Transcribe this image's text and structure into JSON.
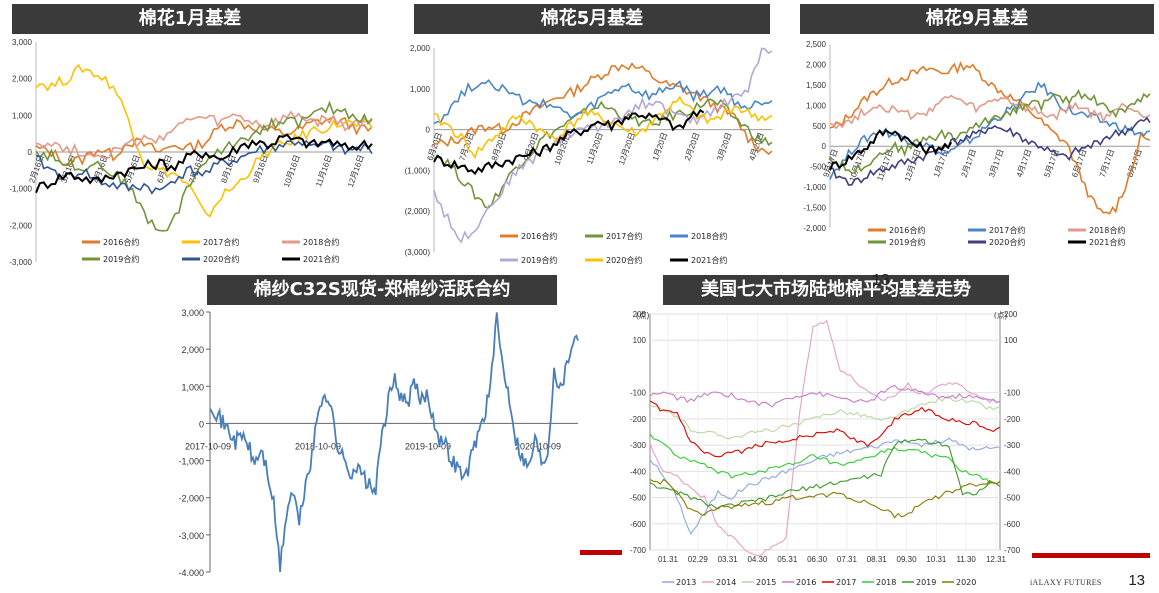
{
  "page": {
    "page_number": "13",
    "brand_text": "iALAXY FUTURES",
    "overlay_number": "13"
  },
  "chart_data": [
    {
      "id": "jan",
      "type": "line",
      "title": "棉花1月基差",
      "ylim": [
        -3000,
        3000
      ],
      "yticks": [
        "3,000",
        "2,000",
        "1,000",
        "0",
        "(1,000)",
        "-2,000",
        "-3,000"
      ],
      "yticks_display": [
        "3,000",
        "2,000",
        "1,000",
        "0",
        "-1,000",
        "-2,000",
        "-3,000"
      ],
      "xticks": [
        "2月16日",
        "3月16日",
        "4月16日",
        "5月16日",
        "6月16日",
        "7月16日",
        "8月16日",
        "9月16日",
        "10月16日",
        "11月16日",
        "12月16日"
      ],
      "series": [
        {
          "name": "2016合约",
          "color": "#e07b29",
          "values": [
            100,
            0,
            -300,
            -200,
            100,
            -100,
            300,
            200,
            0,
            200,
            100,
            300,
            700,
            800,
            700,
            600,
            500,
            600,
            800,
            900,
            800,
            600
          ]
        },
        {
          "name": "2017合约",
          "color": "#ffc000",
          "values": [
            1900,
            1800,
            2000,
            2300,
            2100,
            1800,
            900,
            -300,
            -500,
            -600,
            -1000,
            -1800,
            -1200,
            -900,
            -400,
            0,
            200,
            400,
            600,
            700,
            800,
            700
          ]
        },
        {
          "name": "2018合约",
          "color": "#e39a8a",
          "values": [
            300,
            200,
            100,
            0,
            -100,
            0,
            200,
            300,
            400,
            600,
            900,
            900,
            800,
            1000,
            800,
            700,
            900,
            1000,
            800,
            900,
            700,
            800
          ]
        },
        {
          "name": "2019合约",
          "color": "#70963a",
          "values": [
            0,
            -100,
            -300,
            -400,
            -300,
            -600,
            -900,
            -1700,
            -2200,
            -1800,
            -800,
            -200,
            0,
            300,
            500,
            700,
            900,
            800,
            1000,
            1200,
            1100,
            900
          ]
        },
        {
          "name": "2020合约",
          "color": "#2f5597",
          "values": [
            -200,
            -500,
            -700,
            -500,
            -800,
            -900,
            -1000,
            -900,
            -1100,
            -700,
            -500,
            -600,
            -300,
            -200,
            0,
            100,
            200,
            300,
            100,
            200,
            0,
            100
          ]
        },
        {
          "name": "2021合约",
          "color": "#000000",
          "values": [
            -1000,
            -800,
            -600,
            -700,
            -800,
            -600,
            -500,
            -400,
            -300,
            -400,
            -100,
            0,
            -200,
            100,
            300,
            200,
            400,
            300,
            200,
            300,
            100,
            200
          ]
        }
      ]
    },
    {
      "id": "may",
      "type": "line",
      "title": "棉花5月基差",
      "ylim": [
        -3000,
        2000
      ],
      "yticks": [
        "2,000",
        "1,000",
        "0",
        "(1,000)",
        "(2,000)",
        "(3,000)"
      ],
      "xticks": [
        "6月20日",
        "7月20日",
        "8月20日",
        "9月20日",
        "10月20日",
        "11月20日",
        "12月20日",
        "1月20日",
        "2月20日",
        "3月20日",
        "4月20日"
      ],
      "series": [
        {
          "name": "2016合约",
          "color": "#e07b29",
          "values": [
            -400,
            -300,
            -200,
            0,
            100,
            0,
            200,
            400,
            600,
            800,
            900,
            1100,
            1300,
            1500,
            1600,
            1500,
            1300,
            1100,
            1000,
            900,
            700,
            500,
            300,
            -200,
            -500
          ]
        },
        {
          "name": "2017合约",
          "color": "#70963a",
          "values": [
            -600,
            -800,
            -1200,
            -1600,
            -1900,
            -1400,
            -900,
            -600,
            -200,
            0,
            200,
            400,
            600,
            500,
            300,
            200,
            100,
            300,
            400,
            500,
            700,
            600,
            300,
            0,
            -300
          ]
        },
        {
          "name": "2018合约",
          "color": "#4a86c5",
          "values": [
            200,
            400,
            900,
            1100,
            1200,
            1000,
            800,
            600,
            700,
            500,
            300,
            400,
            700,
            900,
            1100,
            900,
            800,
            1000,
            1100,
            800,
            900,
            1000,
            700,
            500,
            700
          ]
        },
        {
          "name": "2019合约",
          "color": "#b4a7d6",
          "values": [
            -1500,
            -2200,
            -2700,
            -2400,
            -1900,
            -1500,
            -1000,
            -800,
            -500,
            -300,
            -100,
            100,
            0,
            200,
            400,
            600,
            700,
            500,
            300,
            200,
            400,
            600,
            800,
            1000,
            1900
          ]
        },
        {
          "name": "2020合约",
          "color": "#ffc000",
          "values": [
            300,
            100,
            -200,
            -600,
            -300,
            0,
            300,
            200,
            -100,
            -200,
            100,
            400,
            300,
            200,
            0,
            -100,
            200,
            500,
            700,
            400,
            200,
            300,
            600,
            400,
            300
          ]
        },
        {
          "name": "2021合约",
          "color": "#000000",
          "values": [
            -700,
            -800,
            -900,
            -1000,
            -900,
            -800,
            -700,
            -600,
            -500,
            -300,
            -100,
            0,
            200,
            100,
            300,
            400,
            300,
            200,
            0,
            400,
            null,
            null,
            null,
            null,
            null
          ]
        }
      ]
    },
    {
      "id": "sep",
      "type": "line",
      "title": "棉花9月基差",
      "ylim": [
        -2000,
        2500
      ],
      "yticks": [
        "2,500",
        "2,000",
        "1,500",
        "1,000",
        "500",
        "0",
        "(500)",
        "(1,000)",
        "(1,500)",
        "-2,000"
      ],
      "yticks_display": [
        "2,500",
        "2,000",
        "1,500",
        "1,000",
        "500",
        "0",
        "-500",
        "-1,000",
        "-1,500",
        "-2,000"
      ],
      "xticks": [
        "9月17日",
        "10月17日",
        "11月17日",
        "12月17日",
        "1月17日",
        "2月17日",
        "3月17日",
        "4月17日",
        "5月17日",
        "6月17日",
        "7月17日",
        "8月17日"
      ],
      "series": [
        {
          "name": "2016合约",
          "color": "#e07b29",
          "values": [
            400,
            600,
            900,
            1200,
            1400,
            1600,
            1700,
            1800,
            1900,
            1800,
            1900,
            2000,
            1800,
            1500,
            1300,
            1100,
            900,
            600,
            300,
            100,
            -600,
            -1300,
            -1700,
            -1500,
            -800,
            200
          ]
        },
        {
          "name": "2017合约",
          "color": "#4a86c5",
          "values": [
            -700,
            -400,
            0,
            200,
            400,
            300,
            200,
            100,
            0,
            -200,
            -100,
            100,
            300,
            600,
            800,
            1000,
            1300,
            1500,
            1200,
            900,
            800,
            700,
            600,
            500,
            400,
            300
          ]
        },
        {
          "name": "2018合约",
          "color": "#e39a8a",
          "values": [
            600,
            500,
            700,
            900,
            1000,
            900,
            800,
            700,
            900,
            1100,
            1200,
            1000,
            900,
            1100,
            1200,
            1000,
            900,
            800,
            700,
            900,
            1000,
            800,
            700,
            900,
            1000,
            800
          ]
        },
        {
          "name": "2019合约",
          "color": "#70963a",
          "values": [
            -300,
            -500,
            -600,
            -400,
            -200,
            0,
            -100,
            100,
            200,
            300,
            200,
            400,
            500,
            700,
            800,
            900,
            1100,
            1000,
            1200,
            1100,
            1300,
            1200,
            1000,
            800,
            900,
            1200
          ]
        },
        {
          "name": "2020合约",
          "color": "#403f7f",
          "values": [
            -600,
            -800,
            -900,
            -700,
            -600,
            -500,
            -400,
            -300,
            -200,
            0,
            100,
            200,
            300,
            500,
            400,
            300,
            100,
            0,
            -200,
            -300,
            -100,
            0,
            200,
            300,
            400,
            600
          ]
        },
        {
          "name": "2021合约",
          "color": "#000000",
          "values": [
            -500,
            -400,
            -200,
            0,
            300,
            400,
            200,
            0,
            -100,
            0,
            null,
            null,
            null,
            null,
            null,
            null,
            null,
            null,
            null,
            null,
            null,
            null,
            null,
            null,
            null,
            null
          ]
        }
      ]
    },
    {
      "id": "yarn",
      "type": "line",
      "title": "棉纱C32S现货-郑棉纱活跃合约",
      "ylim": [
        -4000,
        3000
      ],
      "yticks": [
        "3,000",
        "2,000",
        "1,000",
        "0",
        "-1,000",
        "-2,000",
        "-3,000",
        "-4,000"
      ],
      "xticks": [
        "2017-10-09",
        "2018-10-09",
        "2019-10-09",
        "2020-10-09"
      ],
      "series": [
        {
          "name": "",
          "color": "#4a7ebb",
          "values": [
            600,
            300,
            0,
            -200,
            -500,
            -300,
            -600,
            -1100,
            -700,
            -1300,
            -2200,
            -3900,
            -2400,
            -1800,
            -2700,
            -1600,
            -900,
            300,
            900,
            400,
            -600,
            -1000,
            -1300,
            -1200,
            -1400,
            -1700,
            -1800,
            -300,
            600,
            1200,
            700,
            500,
            1100,
            600,
            800,
            200,
            -400,
            -600,
            -1000,
            -1200,
            -1500,
            -900,
            -300,
            200,
            1000,
            2800,
            1500,
            700,
            -400,
            -900,
            -1200,
            -400,
            -1000,
            -800,
            1500,
            900,
            1600,
            2300
          ]
        }
      ]
    },
    {
      "id": "us",
      "type": "line",
      "title": "美国七大市场陆地棉平均基差走势",
      "ylim": [
        -700,
        200
      ],
      "yticks": [
        "200",
        "100",
        "-100",
        "-200",
        "-300",
        "-400",
        "-500",
        "-600",
        "-700"
      ],
      "yunit": "(点)",
      "xticks": [
        "01.31",
        "02.29",
        "03.31",
        "04.30",
        "05.31",
        "06.30",
        "07.31",
        "08.31",
        "09.30",
        "10.31",
        "11.30",
        "12.31"
      ],
      "series": [
        {
          "name": "2013",
          "color": "#8ea9db",
          "values": [
            -350,
            -420,
            -500,
            -640,
            -560,
            -480,
            -500,
            -460,
            -440,
            -420,
            -400,
            -380,
            -360,
            -340,
            -330,
            -320,
            -310,
            -300,
            -280,
            -290,
            -300,
            -290,
            -280,
            -300,
            -320,
            -310
          ]
        },
        {
          "name": "2014",
          "color": "#e4a1c6",
          "values": [
            -300,
            -400,
            -420,
            -460,
            -500,
            -600,
            -650,
            -700,
            -720,
            -690,
            -660,
            -180,
            160,
            170,
            -10,
            -50,
            -100,
            -130,
            -110,
            -70,
            -110,
            -80,
            -60,
            -80,
            -110,
            -130
          ]
        },
        {
          "name": "2015",
          "color": "#b9d9a3",
          "values": [
            -150,
            -170,
            -190,
            -240,
            -250,
            -260,
            -270,
            -260,
            -250,
            -240,
            -230,
            -220,
            -200,
            -180,
            -170,
            -180,
            -190,
            -210,
            -190,
            -170,
            -150,
            -130,
            -120,
            -130,
            -140,
            -160
          ]
        },
        {
          "name": "2016",
          "color": "#c77cc9",
          "values": [
            -110,
            -100,
            -120,
            -130,
            -110,
            -100,
            -110,
            -130,
            -140,
            -150,
            -120,
            -110,
            -100,
            -110,
            -120,
            -130,
            -140,
            -100,
            -80,
            -90,
            -100,
            -110,
            -120,
            -110,
            -120,
            -130
          ]
        },
        {
          "name": "2017",
          "color": "#e00000",
          "values": [
            -140,
            -170,
            -180,
            -290,
            -330,
            -350,
            -330,
            -320,
            -300,
            -290,
            -280,
            -270,
            -260,
            -250,
            -240,
            -280,
            -300,
            -270,
            -200,
            -180,
            -160,
            -180,
            -200,
            -210,
            -220,
            -240
          ]
        },
        {
          "name": "2018",
          "color": "#33cc33",
          "values": [
            -260,
            -300,
            -340,
            -360,
            -380,
            -400,
            -420,
            -410,
            -400,
            -390,
            -380,
            -370,
            -340,
            -360,
            -380,
            -370,
            -350,
            -330,
            -310,
            -320,
            -330,
            -340,
            -350,
            -400,
            -420,
            -440
          ]
        },
        {
          "name": "2019",
          "color": "#3a9a2a",
          "values": [
            -440,
            -470,
            -480,
            -500,
            -520,
            -540,
            -530,
            -520,
            -510,
            -500,
            -480,
            -470,
            -460,
            -450,
            -440,
            -430,
            -420,
            -410,
            -300,
            -280,
            -280,
            -290,
            -300,
            -490,
            -480,
            -450
          ]
        },
        {
          "name": "2020",
          "color": "#8a7a00",
          "values": [
            -440,
            -440,
            -480,
            -550,
            -560,
            -540,
            -540,
            -530,
            -520,
            -520,
            -500,
            -500,
            -490,
            -490,
            -480,
            -510,
            -520,
            -540,
            -570,
            -560,
            -520,
            -500,
            -480,
            -460,
            -450,
            -440
          ]
        }
      ]
    }
  ]
}
